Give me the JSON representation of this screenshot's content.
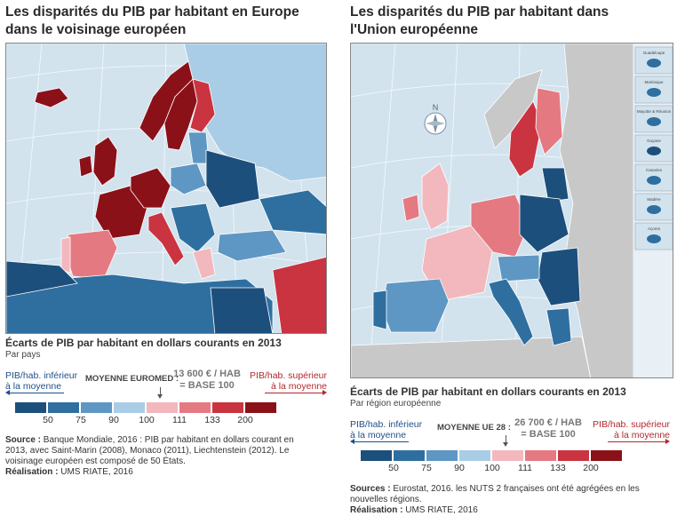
{
  "colors": {
    "scale": [
      "#1d4f7c",
      "#2f6fa0",
      "#5e97c4",
      "#a9cde6",
      "#f2b8bd",
      "#e57982",
      "#c93440",
      "#8b1119"
    ],
    "non_eu": "#c8c8c8",
    "sea": "#d2e3ee"
  },
  "left": {
    "title": "Les disparités du PIB par habitant en Europe dans le voisinage européen",
    "legend_title": "Écarts de PIB par habitant en dollars courants en 2013",
    "legend_sub": "Par pays",
    "inferior": "PIB/hab. inférieur\nà la moyenne",
    "superior": "PIB/hab. supérieur\nà la moyenne",
    "moyenne_label": "MOYENNE EUROMED :",
    "moyenne_value_1": "13 600 € / HAB",
    "moyenne_value_2": "= BASE 100",
    "ticks": [
      "50",
      "75",
      "90",
      "100",
      "111",
      "133",
      "200"
    ],
    "source_label": "Source :",
    "source_text": " Banque Mondiale, 2016 : PIB par habitant en dollars courant en 2013, avec Saint-Marin (2008), Monaco (2011), Liechtenstein (2012). Le voisinage européen est composé de 50 États.",
    "realisation_label": "Réalisation :",
    "realisation_text": " UMS RIATE, 2016"
  },
  "right": {
    "title": "Les disparités du PIB par habitant dans l'Union européenne",
    "legend_title": "Écarts de PIB par habitant en dollars courants en 2013",
    "legend_sub": "Par région européenne",
    "inferior": "PIB/hab. inférieur\nà la moyenne",
    "superior": "PIB/hab. supérieur\nà la moyenne",
    "moyenne_label": "MOYENNE UE 28 :",
    "moyenne_value_1": "26 700 € / HAB",
    "moyenne_value_2": "= BASE 100",
    "ticks": [
      "50",
      "75",
      "90",
      "100",
      "111",
      "133",
      "200"
    ],
    "source_label": "Sources :",
    "source_text": " Eurostat, 2016. les NUTS 2 françaises ont été agrégées en les nouvelles régions.",
    "realisation_label": "Réalisation :",
    "realisation_text": " UMS RIATE, 2016",
    "compass": "N",
    "insets": [
      "Guadeloupe",
      "Martinique",
      "Mayotte & Réunion",
      "Guyane",
      "Canaries",
      "Madère",
      "Açores"
    ]
  }
}
